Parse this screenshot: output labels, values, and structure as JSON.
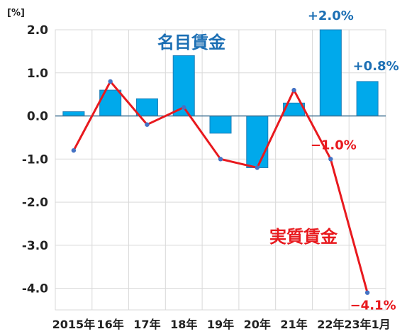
{
  "chart_data": {
    "type": "bar",
    "unit_label": "[%]",
    "categories": [
      "2015年",
      "16年",
      "17年",
      "18年",
      "19年",
      "20年",
      "21年",
      "22年",
      "23年1月"
    ],
    "ylim": [
      -4.5,
      2.0
    ],
    "yticks": [
      "2.0",
      "1.0",
      "0.0",
      "-1.0",
      "-2.0",
      "-3.0",
      "-4.0"
    ],
    "ytick_values": [
      2.0,
      1.0,
      0.0,
      -1.0,
      -2.0,
      -3.0,
      -4.0
    ],
    "grid": true,
    "series": [
      {
        "name": "名目賃金",
        "kind": "bar",
        "color": "#00A9EB",
        "values": [
          0.1,
          0.6,
          0.4,
          1.4,
          -0.4,
          -1.2,
          0.3,
          2.0,
          0.8
        ]
      },
      {
        "name": "実質賃金",
        "kind": "line",
        "color": "#E8191E",
        "values": [
          -0.8,
          0.8,
          -0.2,
          0.2,
          -1.0,
          -1.2,
          0.6,
          -1.0,
          -4.1
        ]
      }
    ],
    "annotations": [
      {
        "text": "+2.0%",
        "series": 0,
        "index": 7,
        "color": "#1C6FB4"
      },
      {
        "text": "+0.8%",
        "series": 0,
        "index": 8,
        "color": "#1C6FB4"
      },
      {
        "text": "−1.0%",
        "series": 1,
        "index": 7,
        "color": "#E8191E"
      },
      {
        "text": "−4.1%",
        "series": 1,
        "index": 8,
        "color": "#E8191E"
      }
    ]
  }
}
